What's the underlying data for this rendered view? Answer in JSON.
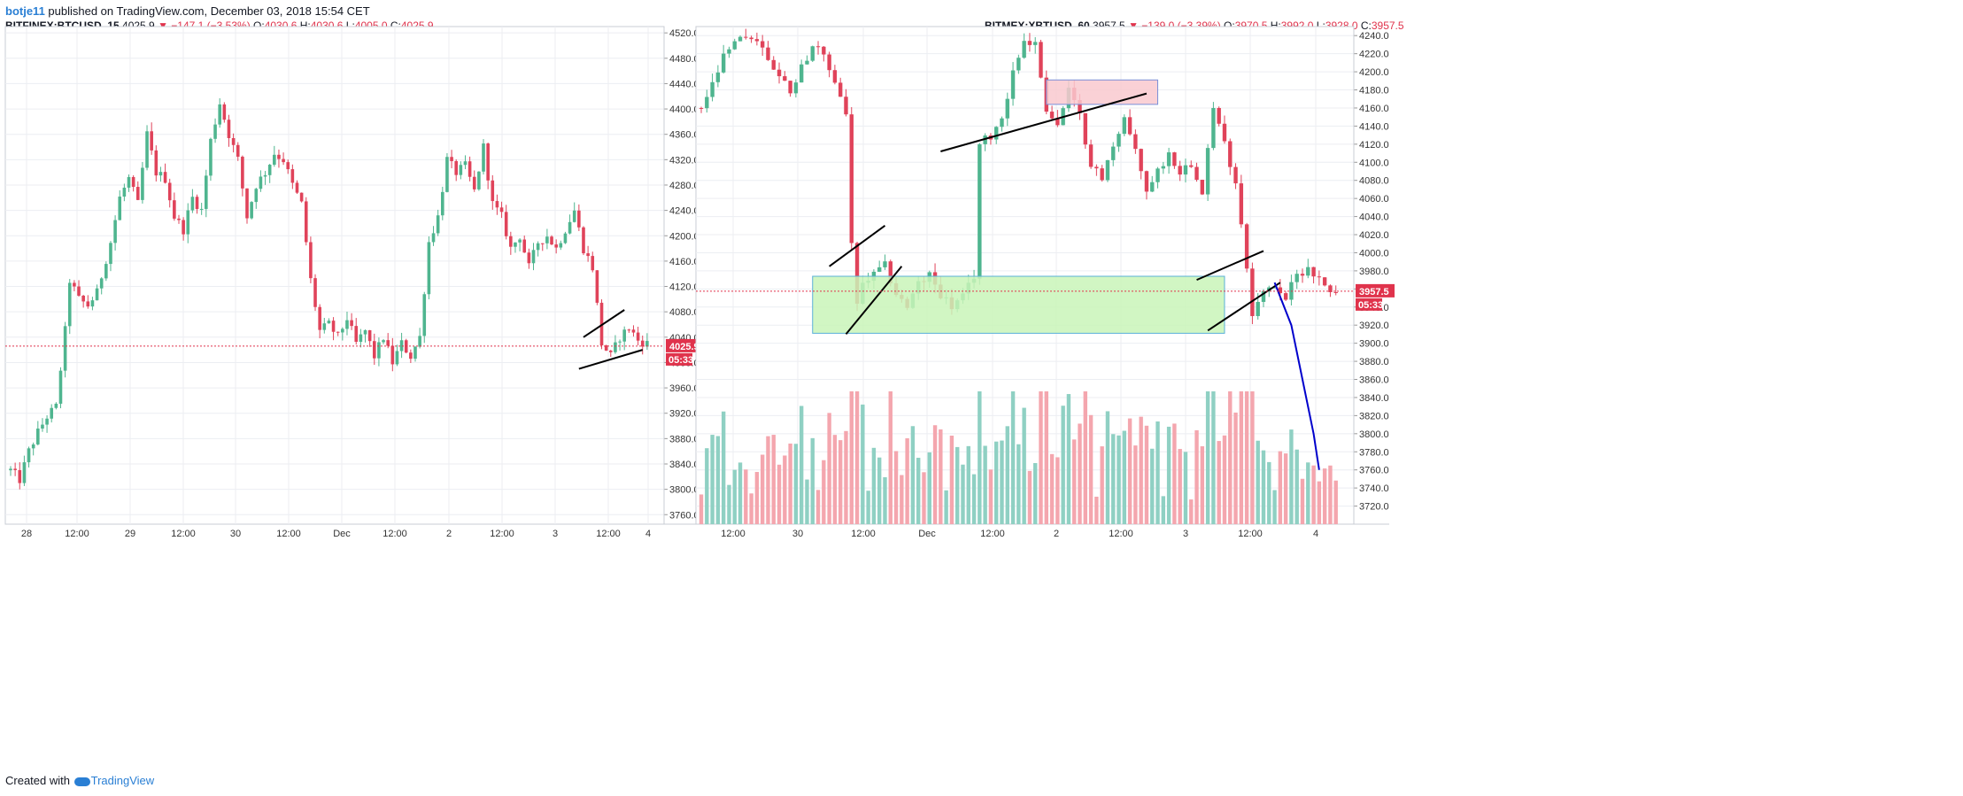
{
  "header": {
    "author": "botje11",
    "rest": " published on TradingView.com, December 03, 2018 15:54 CET"
  },
  "footer": {
    "prefix": "Created with",
    "brand": "TradingView"
  },
  "colors": {
    "up": "#4fb58f",
    "down": "#e0435a",
    "vol_up": "#8fd0c3",
    "vol_down": "#f4a6ae",
    "grid": "#eceef2",
    "price_line": "#e0334c",
    "box_green": "#c9f5b9",
    "box_red": "#f9c9cf",
    "arrow": "#0000cc"
  },
  "panels": [
    {
      "symbol": "BITFINEX:BTCUSD, 15",
      "last": "4025.9",
      "change": "▼ −147.1 (−3.53%)",
      "o": "4030.6",
      "h": "4030.6",
      "l": "4005.0",
      "c": "4025.9",
      "price_tag": "4025.9",
      "countdown": "05:33"
    },
    {
      "symbol": "BITMEX:XBTUSD, 60",
      "last": "3957.5",
      "change": "▼ −139.0 (−3.39%)",
      "o": "3970.5",
      "h": "3992.0",
      "l": "3928.0",
      "c": "3957.5",
      "price_tag": "3957.5",
      "countdown": "05:33"
    }
  ],
  "chart_data": [
    {
      "type": "candlestick",
      "title": "BITFINEX:BTCUSD, 15",
      "ylim": [
        3745,
        4530
      ],
      "yticks": [
        3760,
        3800,
        3840,
        3880,
        3920,
        3960,
        4000,
        4040,
        4080,
        4120,
        4160,
        4200,
        4240,
        4280,
        4320,
        4360,
        4400,
        4440,
        4480,
        4520
      ],
      "x_labels": [
        "28",
        "12:00",
        "29",
        "12:00",
        "30",
        "12:00",
        "Dec",
        "12:00",
        "2",
        "12:00",
        "3",
        "12:00",
        "4"
      ],
      "last_price": 4025.9,
      "price_path": [
        [
          0,
          3830
        ],
        [
          2,
          3815
        ],
        [
          4,
          3860
        ],
        [
          6,
          3890
        ],
        [
          8,
          3915
        ],
        [
          10,
          3930
        ],
        [
          12,
          4050
        ],
        [
          13,
          4130
        ],
        [
          15,
          4100
        ],
        [
          17,
          4090
        ],
        [
          19,
          4110
        ],
        [
          22,
          4190
        ],
        [
          24,
          4260
        ],
        [
          26,
          4290
        ],
        [
          28,
          4250
        ],
        [
          30,
          4360
        ],
        [
          32,
          4300
        ],
        [
          34,
          4290
        ],
        [
          36,
          4230
        ],
        [
          38,
          4210
        ],
        [
          40,
          4260
        ],
        [
          42,
          4240
        ],
        [
          44,
          4350
        ],
        [
          46,
          4410
        ],
        [
          48,
          4360
        ],
        [
          50,
          4320
        ],
        [
          52,
          4230
        ],
        [
          54,
          4280
        ],
        [
          56,
          4300
        ],
        [
          58,
          4330
        ],
        [
          60,
          4320
        ],
        [
          62,
          4280
        ],
        [
          64,
          4250
        ],
        [
          66,
          4130
        ],
        [
          68,
          4050
        ],
        [
          70,
          4060
        ],
        [
          72,
          4040
        ],
        [
          74,
          4070
        ],
        [
          76,
          4030
        ],
        [
          78,
          4050
        ],
        [
          80,
          4010
        ],
        [
          82,
          4040
        ],
        [
          84,
          4000
        ],
        [
          86,
          4030
        ],
        [
          88,
          4010
        ],
        [
          90,
          4040
        ],
        [
          92,
          4190
        ],
        [
          94,
          4230
        ],
        [
          96,
          4320
        ],
        [
          98,
          4300
        ],
        [
          100,
          4310
        ],
        [
          102,
          4270
        ],
        [
          104,
          4340
        ],
        [
          106,
          4250
        ],
        [
          108,
          4230
        ],
        [
          110,
          4180
        ],
        [
          112,
          4200
        ],
        [
          114,
          4150
        ],
        [
          116,
          4190
        ],
        [
          118,
          4200
        ],
        [
          120,
          4180
        ],
        [
          122,
          4210
        ],
        [
          124,
          4240
        ],
        [
          126,
          4180
        ],
        [
          128,
          4150
        ],
        [
          130,
          4030
        ],
        [
          132,
          4010
        ],
        [
          134,
          4040
        ],
        [
          136,
          4055
        ],
        [
          138,
          4035
        ],
        [
          140,
          4030
        ]
      ],
      "annotations": [
        {
          "type": "trendline",
          "p1": [
            126,
            4040
          ],
          "p2": [
            135,
            4083
          ]
        },
        {
          "type": "trendline",
          "p1": [
            125,
            3990
          ],
          "p2": [
            139,
            4020
          ]
        }
      ]
    },
    {
      "type": "candlestick",
      "title": "BITMEX:XBTUSD, 60",
      "ylim": [
        3700,
        4250
      ],
      "yticks": [
        3720,
        3740,
        3760,
        3780,
        3800,
        3820,
        3840,
        3860,
        3880,
        3900,
        3920,
        3940,
        3960,
        3980,
        4000,
        4020,
        4040,
        4060,
        4080,
        4100,
        4120,
        4140,
        4160,
        4180,
        4200,
        4220,
        4240
      ],
      "x_labels": [
        "12:00",
        "30",
        "12:00",
        "Dec",
        "12:00",
        "2",
        "12:00",
        "3",
        "12:00",
        "4"
      ],
      "last_price": 3957.5,
      "price_path": [
        [
          0,
          4160
        ],
        [
          2,
          4185
        ],
        [
          4,
          4215
        ],
        [
          6,
          4230
        ],
        [
          8,
          4240
        ],
        [
          10,
          4235
        ],
        [
          12,
          4215
        ],
        [
          14,
          4195
        ],
        [
          16,
          4180
        ],
        [
          18,
          4205
        ],
        [
          20,
          4230
        ],
        [
          22,
          4215
        ],
        [
          24,
          4190
        ],
        [
          26,
          4155
        ],
        [
          27,
          4010
        ],
        [
          28,
          3940
        ],
        [
          29,
          3965
        ],
        [
          31,
          3975
        ],
        [
          33,
          3985
        ],
        [
          35,
          3955
        ],
        [
          37,
          3940
        ],
        [
          39,
          3965
        ],
        [
          41,
          3975
        ],
        [
          43,
          3955
        ],
        [
          45,
          3940
        ],
        [
          47,
          3950
        ],
        [
          49,
          3975
        ],
        [
          50,
          4120
        ],
        [
          52,
          4130
        ],
        [
          54,
          4150
        ],
        [
          56,
          4200
        ],
        [
          58,
          4235
        ],
        [
          60,
          4230
        ],
        [
          62,
          4160
        ],
        [
          64,
          4140
        ],
        [
          66,
          4180
        ],
        [
          68,
          4150
        ],
        [
          70,
          4100
        ],
        [
          72,
          4080
        ],
        [
          74,
          4120
        ],
        [
          76,
          4150
        ],
        [
          78,
          4110
        ],
        [
          80,
          4070
        ],
        [
          82,
          4090
        ],
        [
          84,
          4110
        ],
        [
          86,
          4090
        ],
        [
          88,
          4100
        ],
        [
          90,
          4070
        ],
        [
          92,
          4160
        ],
        [
          94,
          4120
        ],
        [
          96,
          4080
        ],
        [
          98,
          3985
        ],
        [
          99,
          3935
        ],
        [
          101,
          3955
        ],
        [
          103,
          3965
        ],
        [
          105,
          3950
        ],
        [
          107,
          3975
        ],
        [
          109,
          3985
        ],
        [
          111,
          3970
        ],
        [
          113,
          3960
        ],
        [
          114,
          3957.5
        ]
      ],
      "annotations": [
        {
          "type": "rectangle",
          "color": "green",
          "x": [
            20,
            94
          ],
          "y": [
            3911,
            3974
          ]
        },
        {
          "type": "rectangle",
          "color": "red",
          "x": [
            62,
            82
          ],
          "y": [
            4164,
            4191
          ]
        },
        {
          "type": "trendline",
          "p1": [
            23,
            3985
          ],
          "p2": [
            33,
            4030
          ]
        },
        {
          "type": "trendline",
          "p1": [
            26,
            3910
          ],
          "p2": [
            36,
            3985
          ]
        },
        {
          "type": "trendline",
          "p1": [
            43,
            4112
          ],
          "p2": [
            80,
            4176
          ]
        },
        {
          "type": "trendline",
          "p1": [
            89,
            3970
          ],
          "p2": [
            101,
            4002
          ]
        },
        {
          "type": "trendline",
          "p1": [
            91,
            3914
          ],
          "p2": [
            104,
            3967
          ]
        },
        {
          "type": "projection",
          "points": [
            [
              103,
              3967
            ],
            [
              106,
              3920
            ],
            [
              108,
              3860
            ],
            [
              110,
              3800
            ],
            [
              111,
              3760
            ]
          ]
        }
      ]
    }
  ]
}
